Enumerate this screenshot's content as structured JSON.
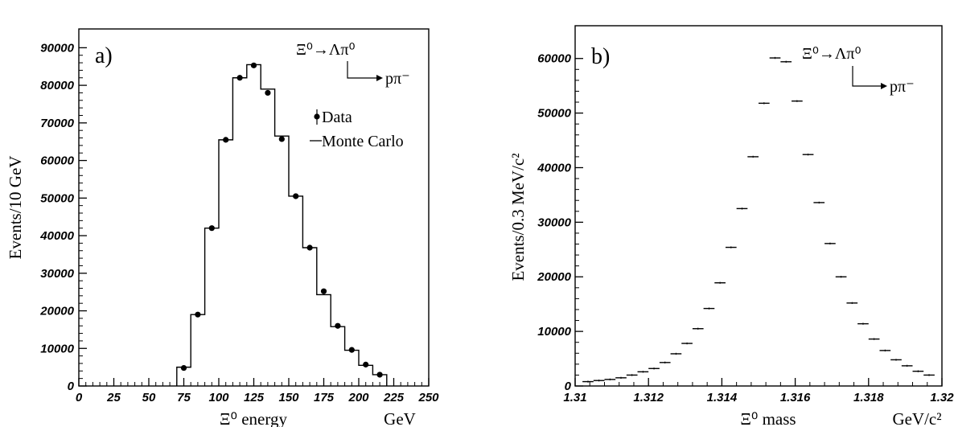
{
  "chart_data": [
    {
      "type": "histogram",
      "panel_label": "a)",
      "ylabel": "Events/10 GeV",
      "xlabel": "Ξ⁰ energy",
      "xunit": "GeV",
      "xlim": [
        0,
        250
      ],
      "ylim": [
        0,
        95000
      ],
      "xticks": [
        0,
        25,
        50,
        75,
        100,
        125,
        150,
        175,
        200,
        225,
        250
      ],
      "yticks": [
        0,
        10000,
        20000,
        30000,
        40000,
        50000,
        60000,
        70000,
        80000,
        90000
      ],
      "decay_main": "Ξ⁰→Λπ⁰",
      "decay_sub": "pπ⁻",
      "legend": [
        {
          "label": "Data",
          "marker": "point-with-errorbar"
        },
        {
          "label": "Monte Carlo",
          "marker": "line"
        }
      ],
      "series": [
        {
          "name": "Monte Carlo",
          "style": "step",
          "bin_edges": [
            70,
            80,
            90,
            100,
            110,
            120,
            130,
            140,
            150,
            160,
            170,
            180,
            190,
            200,
            210,
            220
          ],
          "values": [
            5000,
            19000,
            42000,
            65500,
            82000,
            85500,
            79000,
            66500,
            50500,
            36800,
            24300,
            15800,
            9500,
            5500,
            3000
          ]
        },
        {
          "name": "Data",
          "style": "points",
          "x": [
            75,
            85,
            95,
            105,
            115,
            125,
            135,
            145,
            155,
            165,
            175,
            185,
            195,
            205,
            215
          ],
          "values": [
            4800,
            19000,
            42000,
            65500,
            82000,
            85300,
            78000,
            65700,
            50500,
            36800,
            25200,
            16000,
            9600,
            5700,
            3000
          ]
        }
      ]
    },
    {
      "type": "histogram",
      "panel_label": "b)",
      "ylabel": "Events/0.3 MeV/c²",
      "xlabel": "Ξ⁰ mass",
      "xunit": "GeV/c²",
      "xlim": [
        1.31,
        1.32
      ],
      "ylim": [
        0,
        66000
      ],
      "xticks": [
        1.31,
        1.312,
        1.314,
        1.316,
        1.318,
        1.32
      ],
      "xticklabels": [
        "1.31",
        "1.312",
        "1.314",
        "1.316",
        "1.318",
        "1.32"
      ],
      "yticks": [
        0,
        10000,
        20000,
        30000,
        40000,
        50000,
        60000
      ],
      "decay_main": "Ξ⁰→Λπ⁰",
      "decay_sub": "pπ⁻",
      "series": [
        {
          "name": "Data",
          "style": "error-bars",
          "bin_width": 0.0003,
          "x": [
            1.31035,
            1.31065,
            1.31095,
            1.31125,
            1.31155,
            1.31185,
            1.31215,
            1.31245,
            1.31275,
            1.31305,
            1.31335,
            1.31365,
            1.31395,
            1.31425,
            1.31455,
            1.31485,
            1.31515,
            1.31545,
            1.31575,
            1.31605,
            1.31635,
            1.31665,
            1.31695,
            1.31725,
            1.31755,
            1.31785,
            1.31815,
            1.31845,
            1.31875,
            1.31905,
            1.31935,
            1.31965
          ],
          "values": [
            800,
            1000,
            1200,
            1500,
            2000,
            2600,
            3200,
            4300,
            5900,
            7800,
            10500,
            14200,
            18900,
            25400,
            32500,
            42000,
            51800,
            60100,
            59400,
            52200,
            42400,
            33600,
            26100,
            20000,
            15200,
            11400,
            8600,
            6500,
            4800,
            3700,
            2700,
            2000
          ]
        }
      ]
    }
  ]
}
